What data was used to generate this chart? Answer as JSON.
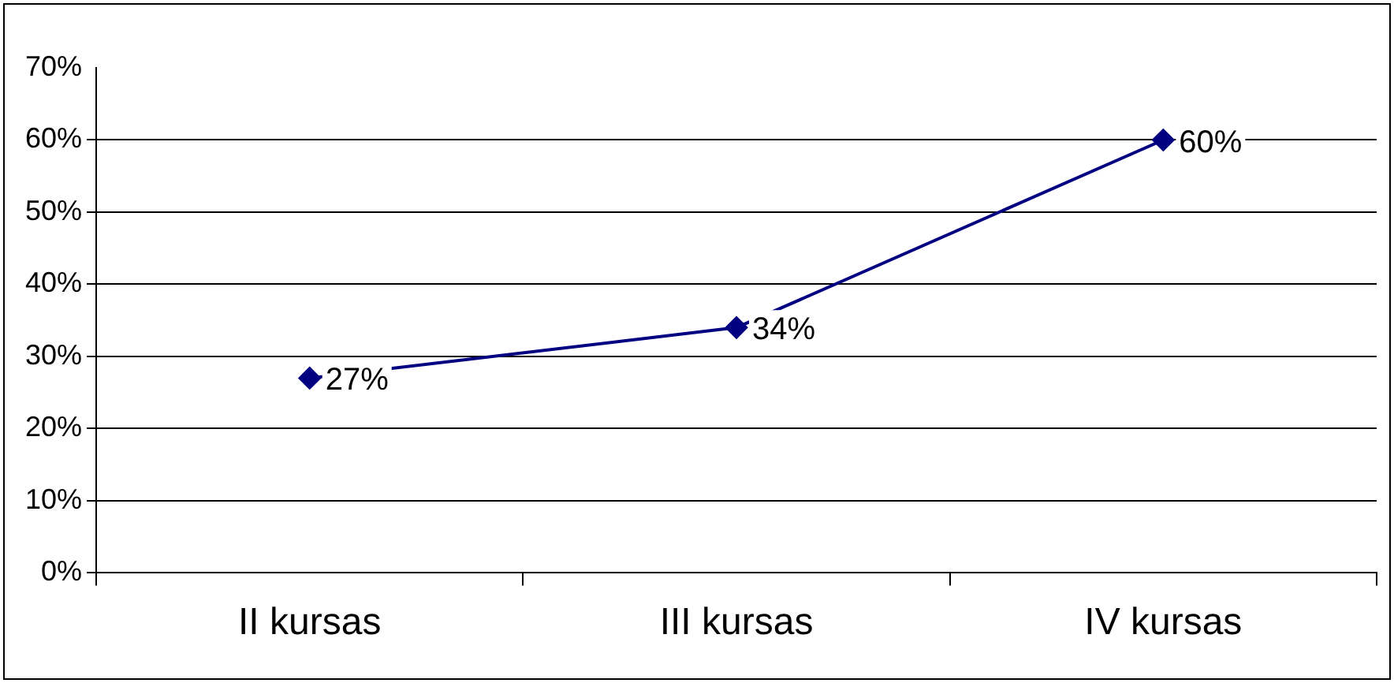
{
  "chart_data": {
    "type": "line",
    "categories": [
      "II kursas",
      "III kursas",
      "IV kursas"
    ],
    "series": [
      {
        "color": "#000080",
        "values": [
          27,
          34,
          60
        ],
        "value_labels": [
          "27%",
          "34%",
          "60%"
        ]
      }
    ],
    "ylim": [
      0,
      70
    ],
    "yticks": [
      {
        "value": 0,
        "label": "0%"
      },
      {
        "value": 10,
        "label": "10%"
      },
      {
        "value": 20,
        "label": "20%"
      },
      {
        "value": 30,
        "label": "30%"
      },
      {
        "value": 40,
        "label": "40%"
      },
      {
        "value": 50,
        "label": "50%"
      },
      {
        "value": 60,
        "label": "60%"
      },
      {
        "value": 70,
        "label": "70%"
      }
    ],
    "grid": "y",
    "legend": false,
    "marker": "diamond",
    "line_style": "solid"
  }
}
